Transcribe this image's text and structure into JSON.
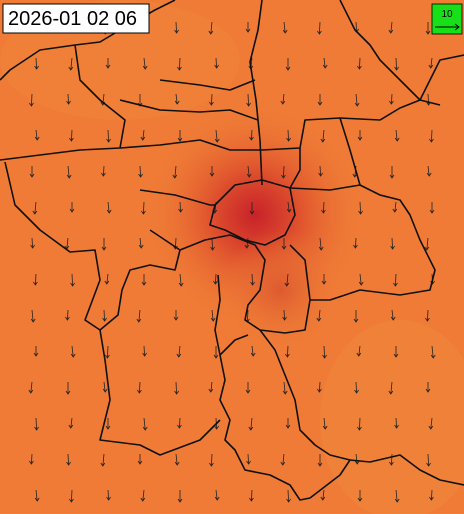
{
  "timestamp": "2026-01 02 06",
  "legend": {
    "scale_label": "10"
  }
}
